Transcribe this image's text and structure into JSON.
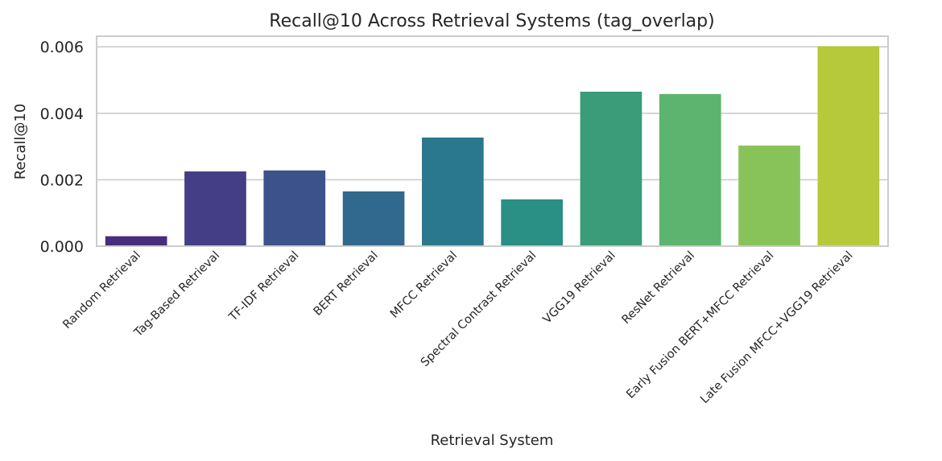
{
  "chart_data": {
    "type": "bar",
    "title": "Recall@10 Across Retrieval Systems (tag_overlap)",
    "xlabel": "Retrieval System",
    "ylabel": "Recall@10",
    "categories": [
      "Random Retrieval",
      "Tag-Based Retrieval",
      "TF-IDF Retrieval",
      "BERT Retrieval",
      "MFCC Retrieval",
      "Spectral Contrast Retrieval",
      "VGG19 Retrieval",
      "ResNet Retrieval",
      "Early Fusion BERT+MFCC Retrieval",
      "Late Fusion MFCC+VGG19 Retrieval"
    ],
    "values": [
      0.0003,
      0.00225,
      0.00228,
      0.00165,
      0.00327,
      0.00141,
      0.00465,
      0.00458,
      0.00303,
      0.00602
    ],
    "colors": [
      "#472d7b",
      "#433e85",
      "#3b528b",
      "#31688e",
      "#2a788e",
      "#2a8f85",
      "#3a9c78",
      "#5db46e",
      "#88c35a",
      "#b5c93a"
    ],
    "ylim": [
      0,
      0.00632
    ],
    "yticks": [
      "0.000",
      "0.002",
      "0.004",
      "0.006"
    ],
    "ytick_values": [
      0,
      0.002,
      0.004,
      0.006
    ],
    "grid": true,
    "legend": "none"
  }
}
